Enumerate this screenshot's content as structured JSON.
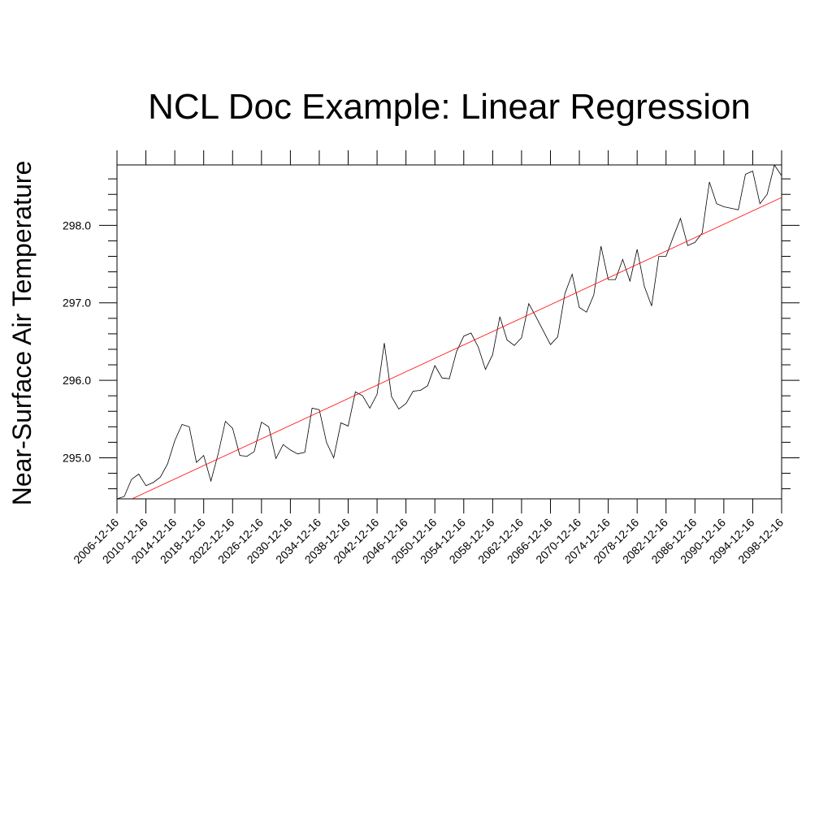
{
  "chart_data": {
    "type": "line",
    "title": "NCL Doc Example:  Linear Regression",
    "xlabel": "",
    "ylabel": "Near-Surface Air Temperature",
    "x_start_year": 2006,
    "x_end_year": 2098,
    "x_tick_labels": [
      "2006-12-16",
      "2010-12-16",
      "2014-12-16",
      "2018-12-16",
      "2022-12-16",
      "2026-12-16",
      "2030-12-16",
      "2034-12-16",
      "2038-12-16",
      "2042-12-16",
      "2046-12-16",
      "2050-12-16",
      "2054-12-16",
      "2058-12-16",
      "2062-12-16",
      "2066-12-16",
      "2070-12-16",
      "2074-12-16",
      "2078-12-16",
      "2082-12-16",
      "2086-12-16",
      "2090-12-16",
      "2094-12-16",
      "2098-12-16"
    ],
    "y_tick_labels": [
      "295.0",
      "296.0",
      "297.0",
      "298.0"
    ],
    "y_ticks": [
      295.0,
      296.0,
      297.0,
      298.0
    ],
    "ylim": [
      294.47,
      298.78
    ],
    "grid": false,
    "series": [
      {
        "color": "#000000",
        "values": [
          294.47,
          294.5,
          294.72,
          294.79,
          294.64,
          294.68,
          294.75,
          294.92,
          295.22,
          295.43,
          295.4,
          294.94,
          295.03,
          294.7,
          295.05,
          295.47,
          295.38,
          295.03,
          295.02,
          295.08,
          295.46,
          295.4,
          294.99,
          295.17,
          295.1,
          295.05,
          295.07,
          295.64,
          295.62,
          295.2,
          295.0,
          295.45,
          295.41,
          295.85,
          295.8,
          295.64,
          295.82,
          296.48,
          295.79,
          295.63,
          295.7,
          295.86,
          295.87,
          295.93,
          296.19,
          296.03,
          296.02,
          296.37,
          296.57,
          296.61,
          296.43,
          296.14,
          296.33,
          296.82,
          296.52,
          296.45,
          296.55,
          296.99,
          296.82,
          296.64,
          296.46,
          296.56,
          297.12,
          297.37,
          296.94,
          296.88,
          297.1,
          297.73,
          297.3,
          297.3,
          297.56,
          297.28,
          297.69,
          297.21,
          296.96,
          297.6,
          297.6,
          297.85,
          298.09,
          297.74,
          297.78,
          297.9,
          298.56,
          298.28,
          298.24,
          298.22,
          298.2,
          298.66,
          298.7,
          298.28,
          298.4,
          298.78,
          298.64
        ]
      },
      {
        "color": "#ff0000",
        "values": [
          294.38,
          298.36
        ]
      }
    ]
  }
}
